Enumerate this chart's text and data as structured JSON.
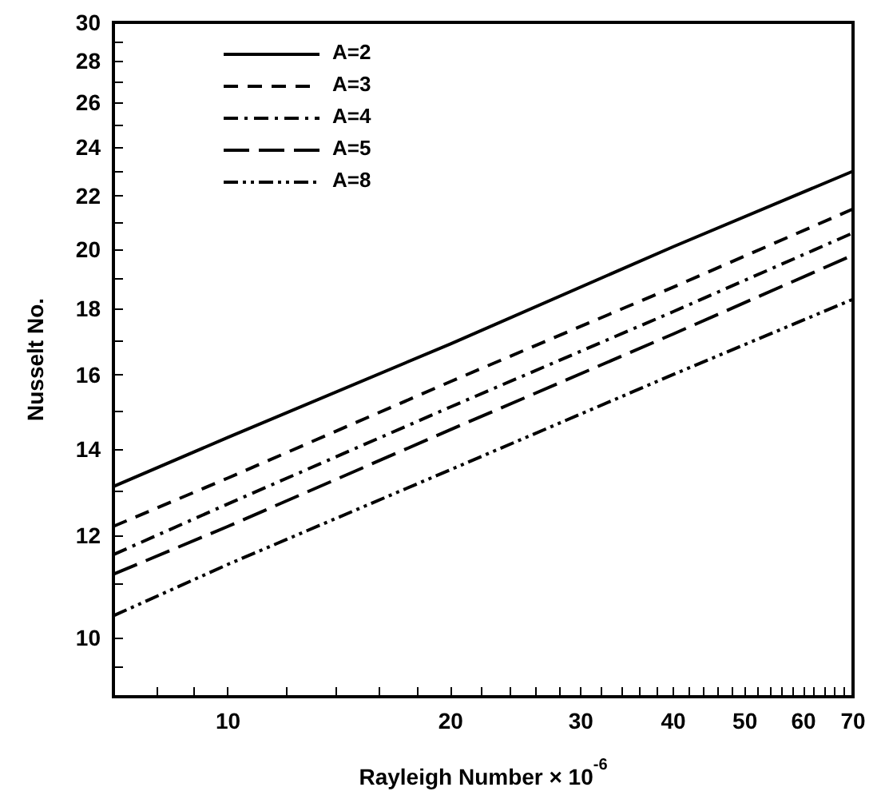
{
  "chart_data": {
    "type": "line",
    "xlabel": "Rayleigh Number × 10$^{-6}$",
    "ylabel": "Nusselt No.",
    "log": "xy",
    "xlim": [
      7,
      70
    ],
    "ylim": [
      9,
      30
    ],
    "xticks": [
      {
        "value": 8,
        "label": null
      },
      {
        "value": 9,
        "label": null
      },
      10,
      {
        "value": 12,
        "label": null
      },
      {
        "value": 14,
        "label": null
      },
      {
        "value": 16,
        "label": null
      },
      {
        "value": 18,
        "label": null
      },
      20,
      {
        "value": 22,
        "label": null
      },
      {
        "value": 24,
        "label": null
      },
      {
        "value": 26,
        "label": null
      },
      {
        "value": 28,
        "label": null
      },
      30,
      {
        "value": 32,
        "label": null
      },
      {
        "value": 34,
        "label": null
      },
      {
        "value": 36,
        "label": null
      },
      {
        "value": 38,
        "label": null
      },
      40,
      {
        "value": 42,
        "label": null
      },
      {
        "value": 44,
        "label": null
      },
      {
        "value": 46,
        "label": null
      },
      {
        "value": 48,
        "label": null
      },
      50,
      {
        "value": 52,
        "label": null
      },
      {
        "value": 54,
        "label": null
      },
      {
        "value": 56,
        "label": null
      },
      {
        "value": 58,
        "label": null
      },
      60,
      {
        "value": 62,
        "label": null
      },
      {
        "value": 64,
        "label": null
      },
      {
        "value": 66,
        "label": null
      },
      {
        "value": 68,
        "label": null
      },
      70
    ],
    "yticks": [
      {
        "value": 9.5,
        "label": null
      },
      10,
      {
        "value": 11,
        "label": null
      },
      12,
      {
        "value": 13,
        "label": null
      },
      14,
      {
        "value": 15,
        "label": null
      },
      16,
      {
        "value": 17,
        "label": null
      },
      18,
      {
        "value": 19,
        "label": null
      },
      20,
      {
        "value": 21,
        "label": null
      },
      22,
      {
        "value": 23,
        "label": null
      },
      24,
      {
        "value": 25,
        "label": null
      },
      26,
      {
        "value": 27,
        "label": null
      },
      28,
      {
        "value": 29,
        "label": null
      },
      30
    ],
    "legend": "top left",
    "grid": false,
    "marker": "none",
    "series": [
      {
        "name": "A=2",
        "color": "#000000",
        "line_style": "solid",
        "x": [
          7,
          10,
          20,
          40,
          70
        ],
        "values": [
          13.1,
          14.3,
          16.9,
          20.1,
          23.0
        ]
      },
      {
        "name": "A=3",
        "color": "#000000",
        "line_style": "dashed",
        "x": [
          7,
          10,
          20,
          40,
          70
        ],
        "values": [
          12.2,
          13.3,
          15.8,
          18.7,
          21.5
        ]
      },
      {
        "name": "A=4",
        "color": "#000000",
        "line_style": "dashdot",
        "x": [
          7,
          10,
          20,
          40,
          70
        ],
        "values": [
          11.6,
          12.7,
          15.1,
          17.9,
          20.6
        ]
      },
      {
        "name": "A=5",
        "color": "#000000",
        "line_style": "longdash",
        "x": [
          7,
          10,
          20,
          40,
          70
        ],
        "values": [
          11.2,
          12.2,
          14.5,
          17.2,
          19.8
        ]
      },
      {
        "name": "A=8",
        "color": "#000000",
        "line_style": "dashdotdot",
        "x": [
          7,
          10,
          20,
          40,
          70
        ],
        "values": [
          10.4,
          11.4,
          13.5,
          16.0,
          18.3
        ]
      }
    ]
  }
}
